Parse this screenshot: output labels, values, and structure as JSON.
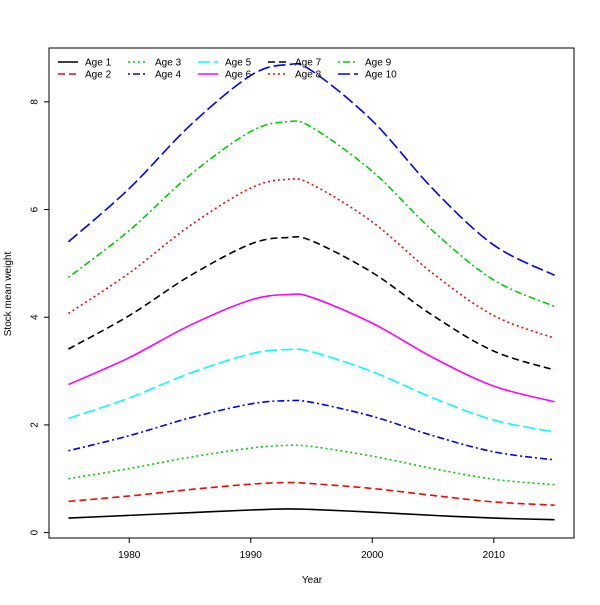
{
  "chart_data": {
    "type": "line",
    "title": "",
    "xlabel": "Year",
    "ylabel": "Stock mean weight",
    "xlim": [
      1973.4,
      2016.6
    ],
    "ylim": [
      -0.1,
      9.0
    ],
    "xticks": [
      1980,
      1990,
      2000,
      2010
    ],
    "yticks": [
      0,
      2,
      4,
      6,
      8
    ],
    "grid": false,
    "legend_position": "top-left",
    "legend_columns": 5,
    "x": [
      1975,
      1980,
      1985,
      1990,
      1993,
      1995,
      2000,
      2005,
      2010,
      2015
    ],
    "series": [
      {
        "name": "Age 1",
        "color": "#000000",
        "dash": "solid",
        "values": [
          0.27,
          0.32,
          0.37,
          0.42,
          0.44,
          0.43,
          0.38,
          0.32,
          0.27,
          0.24
        ]
      },
      {
        "name": "Age 2",
        "color": "#ff0000",
        "dash": "dashed",
        "values": [
          0.58,
          0.68,
          0.8,
          0.9,
          0.93,
          0.91,
          0.82,
          0.69,
          0.57,
          0.51
        ]
      },
      {
        "name": "Age 3",
        "color": "#00cd00",
        "dash": "dotted",
        "values": [
          1.0,
          1.19,
          1.4,
          1.57,
          1.62,
          1.6,
          1.42,
          1.19,
          0.99,
          0.89
        ]
      },
      {
        "name": "Age 4",
        "color": "#0000ff",
        "dash": "dotdash",
        "values": [
          1.52,
          1.8,
          2.13,
          2.39,
          2.45,
          2.42,
          2.16,
          1.8,
          1.5,
          1.35
        ]
      },
      {
        "name": "Age 5",
        "color": "#00ffff",
        "dash": "longdash",
        "values": [
          2.12,
          2.5,
          2.96,
          3.32,
          3.4,
          3.36,
          2.99,
          2.5,
          2.09,
          1.87
        ]
      },
      {
        "name": "Age 6",
        "color": "#ff00ff",
        "dash": "solid",
        "values": [
          2.75,
          3.25,
          3.85,
          4.32,
          4.42,
          4.37,
          3.89,
          3.25,
          2.72,
          2.43
        ]
      },
      {
        "name": "Age 7",
        "color": "#000000",
        "dash": "dashed",
        "values": [
          3.41,
          4.03,
          4.77,
          5.36,
          5.48,
          5.42,
          4.83,
          4.03,
          3.37,
          3.02
        ]
      },
      {
        "name": "Age 8",
        "color": "#ff0000",
        "dash": "dotted",
        "values": [
          4.07,
          4.82,
          5.7,
          6.4,
          6.56,
          6.47,
          5.77,
          4.81,
          4.03,
          3.61
        ]
      },
      {
        "name": "Age 9",
        "color": "#00cd00",
        "dash": "dotdash",
        "values": [
          4.74,
          5.61,
          6.64,
          7.45,
          7.63,
          7.53,
          6.71,
          5.6,
          4.69,
          4.2
        ]
      },
      {
        "name": "Age 10",
        "color": "#0000ff",
        "dash": "longdash",
        "values": [
          5.4,
          6.39,
          7.56,
          8.49,
          8.69,
          8.58,
          7.65,
          6.38,
          5.34,
          4.78
        ]
      }
    ]
  }
}
